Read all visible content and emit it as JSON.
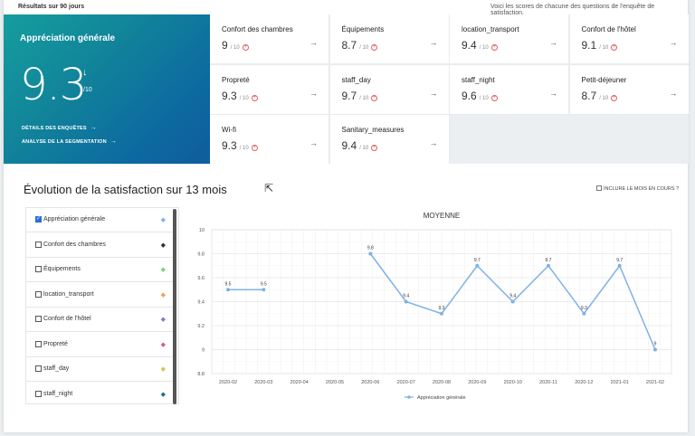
{
  "header": {
    "left_note": "Résultats sur 90 jours",
    "right_note": "Voici les scores de chacune des questions de l'enquête de satisfaction."
  },
  "hero": {
    "title": "Appréciation générale",
    "score": "9.3",
    "trend_icon": "arrow-down-icon",
    "trend_glyph": "↓",
    "unit": "/10",
    "links": [
      {
        "label": "DÉTAILS DES ENQUÊTES",
        "arrow": "→"
      },
      {
        "label": "ANALYSE DE LA SEGMENTATION",
        "arrow": "→"
      }
    ]
  },
  "cards": [
    {
      "title": "Confort des chambres",
      "value": "9",
      "unit": "/ 10",
      "plus": "+",
      "arrow": "→"
    },
    {
      "title": "Équipements",
      "value": "8.7",
      "unit": "/ 10",
      "plus": "+",
      "arrow": "→"
    },
    {
      "title": "location_transport",
      "value": "9.4",
      "unit": "/ 10",
      "plus": "+",
      "arrow": "→"
    },
    {
      "title": "Confort de l'hôtel",
      "value": "9.1",
      "unit": "/ 10",
      "plus": "+",
      "arrow": "→"
    },
    {
      "title": "Propreté",
      "value": "9.3",
      "unit": "/ 10",
      "plus": "+",
      "arrow": "→"
    },
    {
      "title": "staff_day",
      "value": "9.7",
      "unit": "/ 10",
      "plus": "+",
      "arrow": "→"
    },
    {
      "title": "staff_night",
      "value": "9.6",
      "unit": "/ 10",
      "plus": "+",
      "arrow": "→"
    },
    {
      "title": "Petit-déjeuner",
      "value": "8.7",
      "unit": "/ 10",
      "plus": "+",
      "arrow": "→"
    },
    {
      "title": "Wi-fi",
      "value": "9.3",
      "unit": "/ 10",
      "plus": "+",
      "arrow": "→"
    },
    {
      "title": "Sanitary_measures",
      "value": "9.4",
      "unit": "/ 10",
      "plus": "+",
      "arrow": "→"
    }
  ],
  "evolution": {
    "title": "Évolution de la satisfaction sur 13 mois",
    "include_current_month": "INCLURE LE MOIS EN COURS ?",
    "cursor_icon": "mouse-pointer-icon",
    "cursor_glyph": "⇱"
  },
  "legend_items": [
    {
      "label": "Appréciation générale",
      "checked": true,
      "color": "#7fb2e5",
      "marker": "◆"
    },
    {
      "label": "Confort des chambres",
      "checked": false,
      "color": "#333333",
      "marker": "◆"
    },
    {
      "label": "Équipements",
      "checked": false,
      "color": "#7fd17f",
      "marker": "◆"
    },
    {
      "label": "location_transport",
      "checked": false,
      "color": "#f0a050",
      "marker": "◆"
    },
    {
      "label": "Confort de l'hôtel",
      "checked": false,
      "color": "#7a7ad8",
      "marker": "◆"
    },
    {
      "label": "Propreté",
      "checked": false,
      "color": "#e05a7a",
      "marker": "◆"
    },
    {
      "label": "staff_day",
      "checked": false,
      "color": "#e0c050",
      "marker": "◆"
    },
    {
      "label": "staff_night",
      "checked": false,
      "color": "#2a6a8a",
      "marker": "◆"
    }
  ],
  "chart_data": {
    "type": "line",
    "title": "MOYENNE",
    "x": [
      "2020-02",
      "2020-03",
      "2020-04",
      "2020-05",
      "2020-06",
      "2020-07",
      "2020-08",
      "2020-09",
      "2020-10",
      "2020-11",
      "2020-12",
      "2021-01",
      "2021-02"
    ],
    "series": [
      {
        "name": "Appréciation générale",
        "color": "#7fb2e5",
        "values": [
          9.5,
          9.5,
          null,
          null,
          9.8,
          9.4,
          9.3,
          9.7,
          9.4,
          9.7,
          9.3,
          9.7,
          9
        ]
      }
    ],
    "y_ticks": [
      "10",
      "9.8",
      "9.6",
      "9.4",
      "9.2",
      "9",
      "8.8"
    ],
    "ylim": [
      8.8,
      10
    ],
    "grid": true,
    "legend_position": "bottom"
  }
}
